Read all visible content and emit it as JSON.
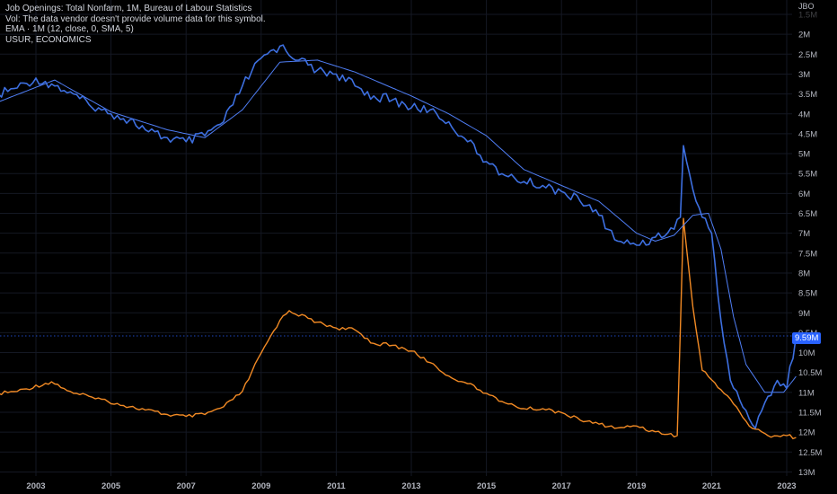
{
  "legend": {
    "title": "Job Openings: Total Nonfarm, 1M, Bureau of Labour Statistics",
    "vol": "Vol: The data vendor doesn't provide volume data for this symbol.",
    "ema": "EMA · 1M (12, close, 0, SMA, 5)",
    "compare": "USUR, ECONOMICS"
  },
  "price_scale_id": "JBO",
  "last_price_label": "9.59M",
  "colors": {
    "background": "#000000",
    "jobs": "#3d6fe0",
    "ema": "#4f7ef5",
    "usur": "#f28a24",
    "grid": "#141823",
    "axis_text": "#b2b5be"
  },
  "chart_data": {
    "type": "line",
    "title": "Job Openings: Total Nonfarm, 1M, Bureau of Labour Statistics",
    "y_axis": {
      "scale": "inverted",
      "ticks": [
        "1.5M",
        "2M",
        "2.5M",
        "3M",
        "3.5M",
        "4M",
        "4.5M",
        "5M",
        "5.5M",
        "6M",
        "6.5M",
        "7M",
        "7.5M",
        "8M",
        "8.5M",
        "9M",
        "9.5M",
        "10M",
        "10.5M",
        "11M",
        "11.5M",
        "12M",
        "12.5M",
        "13M"
      ]
    },
    "x_axis": {
      "ticks": [
        "2003",
        "2005",
        "2007",
        "2009",
        "2011",
        "2013",
        "2015",
        "2017",
        "2019",
        "2021",
        "2023"
      ]
    },
    "series": [
      {
        "name": "Job Openings: Total Nonfarm",
        "unit": "M",
        "points": [
          [
            "2002-01",
            3.5
          ],
          [
            "2002-07",
            3.35
          ],
          [
            "2003-01",
            3.1
          ],
          [
            "2003-07",
            3.3
          ],
          [
            "2004-01",
            3.5
          ],
          [
            "2004-07",
            3.85
          ],
          [
            "2005-01",
            4.0
          ],
          [
            "2005-07",
            4.15
          ],
          [
            "2006-01",
            4.45
          ],
          [
            "2006-07",
            4.6
          ],
          [
            "2007-01",
            4.7
          ],
          [
            "2007-07",
            4.55
          ],
          [
            "2008-01",
            4.2
          ],
          [
            "2008-07",
            3.3
          ],
          [
            "2009-01",
            2.6
          ],
          [
            "2009-07",
            2.3
          ],
          [
            "2010-01",
            2.65
          ],
          [
            "2010-07",
            2.9
          ],
          [
            "2011-01",
            3.0
          ],
          [
            "2011-07",
            3.3
          ],
          [
            "2012-01",
            3.55
          ],
          [
            "2012-07",
            3.65
          ],
          [
            "2013-01",
            3.85
          ],
          [
            "2013-07",
            3.9
          ],
          [
            "2014-01",
            4.2
          ],
          [
            "2014-07",
            4.7
          ],
          [
            "2015-01",
            5.2
          ],
          [
            "2015-07",
            5.55
          ],
          [
            "2016-01",
            5.7
          ],
          [
            "2016-07",
            5.8
          ],
          [
            "2017-01",
            5.95
          ],
          [
            "2017-07",
            6.2
          ],
          [
            "2018-01",
            6.55
          ],
          [
            "2018-07",
            7.2
          ],
          [
            "2019-01",
            7.3
          ],
          [
            "2019-07",
            7.1
          ],
          [
            "2020-01",
            6.9
          ],
          [
            "2020-03",
            6.6
          ],
          [
            "2020-04",
            4.8
          ],
          [
            "2020-07",
            5.9
          ],
          [
            "2020-10",
            6.6
          ],
          [
            "2021-01",
            7.0
          ],
          [
            "2021-04",
            9.2
          ],
          [
            "2021-07",
            10.7
          ],
          [
            "2021-10",
            11.2
          ],
          [
            "2022-03",
            11.9
          ],
          [
            "2022-07",
            11.1
          ],
          [
            "2022-10",
            10.7
          ],
          [
            "2023-01",
            10.9
          ],
          [
            "2023-04",
            9.59
          ]
        ]
      },
      {
        "name": "EMA (12)",
        "unit": "M",
        "points": [
          [
            "2002-01",
            3.7
          ],
          [
            "2003-07",
            3.15
          ],
          [
            "2005-01",
            3.95
          ],
          [
            "2006-07",
            4.4
          ],
          [
            "2007-07",
            4.6
          ],
          [
            "2008-07",
            3.9
          ],
          [
            "2009-07",
            2.7
          ],
          [
            "2010-07",
            2.65
          ],
          [
            "2011-07",
            2.95
          ],
          [
            "2013-01",
            3.55
          ],
          [
            "2014-01",
            4.0
          ],
          [
            "2015-01",
            4.55
          ],
          [
            "2016-01",
            5.4
          ],
          [
            "2017-01",
            5.8
          ],
          [
            "2018-01",
            6.2
          ],
          [
            "2018-07",
            6.6
          ],
          [
            "2019-01",
            7.0
          ],
          [
            "2019-07",
            7.2
          ],
          [
            "2020-01",
            7.05
          ],
          [
            "2020-07",
            6.55
          ],
          [
            "2020-12",
            6.5
          ],
          [
            "2021-04",
            7.4
          ],
          [
            "2021-08",
            9.1
          ],
          [
            "2021-12",
            10.3
          ],
          [
            "2022-06",
            11.0
          ],
          [
            "2022-12",
            11.0
          ],
          [
            "2023-04",
            10.6
          ]
        ]
      },
      {
        "name": "USUR",
        "unit": "%",
        "points": [
          [
            "2002-01",
            5.7
          ],
          [
            "2002-07",
            5.8
          ],
          [
            "2003-06",
            6.3
          ],
          [
            "2004-01",
            5.7
          ],
          [
            "2004-07",
            5.5
          ],
          [
            "2005-07",
            5.0
          ],
          [
            "2006-07",
            4.6
          ],
          [
            "2007-01",
            4.5
          ],
          [
            "2007-07",
            4.6
          ],
          [
            "2008-01",
            5.0
          ],
          [
            "2008-07",
            5.8
          ],
          [
            "2009-01",
            7.8
          ],
          [
            "2009-07",
            9.5
          ],
          [
            "2009-10",
            10.0
          ],
          [
            "2010-07",
            9.4
          ],
          [
            "2011-01",
            9.1
          ],
          [
            "2011-07",
            9.0
          ],
          [
            "2012-01",
            8.3
          ],
          [
            "2012-07",
            8.2
          ],
          [
            "2013-01",
            7.9
          ],
          [
            "2013-07",
            7.3
          ],
          [
            "2014-01",
            6.6
          ],
          [
            "2014-07",
            6.2
          ],
          [
            "2015-01",
            5.7
          ],
          [
            "2015-07",
            5.2
          ],
          [
            "2016-01",
            4.9
          ],
          [
            "2016-07",
            4.9
          ],
          [
            "2017-01",
            4.7
          ],
          [
            "2017-07",
            4.3
          ],
          [
            "2018-01",
            4.1
          ],
          [
            "2018-07",
            3.9
          ],
          [
            "2019-01",
            4.0
          ],
          [
            "2019-07",
            3.7
          ],
          [
            "2020-02",
            3.5
          ],
          [
            "2020-04",
            14.8
          ],
          [
            "2020-07",
            10.2
          ],
          [
            "2020-10",
            6.9
          ],
          [
            "2021-01",
            6.4
          ],
          [
            "2021-07",
            5.4
          ],
          [
            "2022-01",
            4.0
          ],
          [
            "2022-07",
            3.5
          ],
          [
            "2023-01",
            3.5
          ],
          [
            "2023-04",
            3.4
          ]
        ]
      }
    ],
    "last_value": "9.59M"
  }
}
